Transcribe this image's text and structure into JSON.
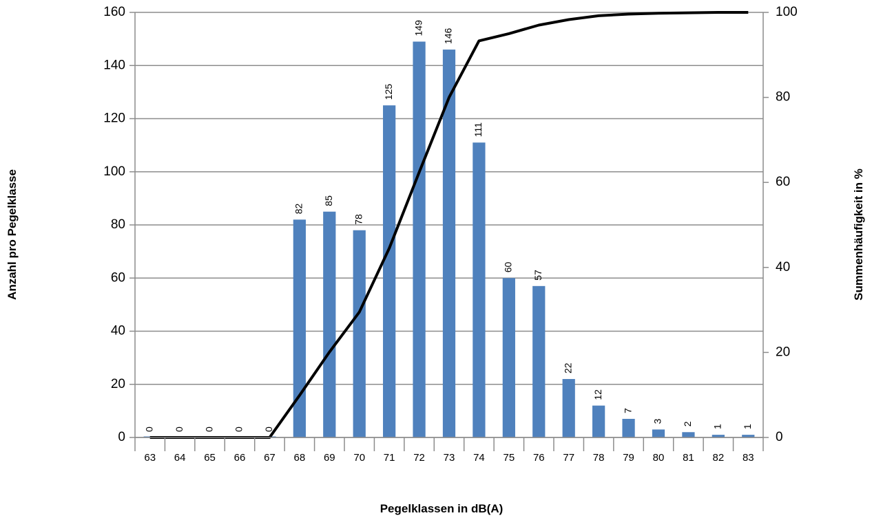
{
  "chart_data": {
    "type": "bar",
    "title": "",
    "xlabel": "Pegelklassen in dB(A)",
    "ylabel": "Anzahl pro Pegelklasse",
    "y2label": "Summenhäufigkeit in %",
    "categories": [
      "63",
      "64",
      "65",
      "66",
      "67",
      "68",
      "69",
      "70",
      "71",
      "72",
      "73",
      "74",
      "75",
      "76",
      "77",
      "78",
      "79",
      "80",
      "81",
      "82",
      "83"
    ],
    "series": [
      {
        "type": "bar",
        "axis": "left",
        "values": [
          0,
          0,
          0,
          0,
          0,
          82,
          85,
          78,
          125,
          149,
          146,
          111,
          60,
          57,
          22,
          12,
          7,
          3,
          2,
          1,
          1
        ],
        "color": "#4f81bd"
      },
      {
        "type": "line",
        "axis": "right",
        "values": [
          0,
          0,
          0,
          0,
          0,
          9.9,
          20.1,
          29.5,
          44.5,
          62.4,
          80.0,
          93.3,
          95.0,
          97.0,
          98.3,
          99.2,
          99.6,
          99.8,
          99.9,
          100,
          100
        ],
        "color": "#000000"
      }
    ],
    "ylim": [
      0,
      160
    ],
    "yticks": [
      0,
      20,
      40,
      60,
      80,
      100,
      120,
      140,
      160
    ],
    "y2lim": [
      0,
      100
    ],
    "y2ticks": [
      0,
      20,
      40,
      60,
      80,
      100
    ],
    "grid": true,
    "legend": "none"
  }
}
